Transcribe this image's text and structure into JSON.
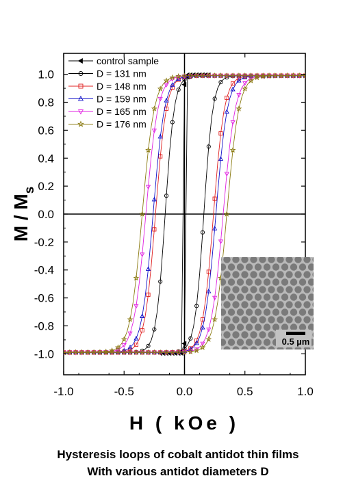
{
  "chart_data": {
    "type": "line",
    "xlabel": "H ( kOe )",
    "ylabel_main": "M / M",
    "ylabel_sub": "s",
    "xlim": [
      -1.0,
      1.0
    ],
    "ylim": [
      -1.15,
      1.15
    ],
    "xticks": [
      "-1.0",
      "-0.5",
      "0.0",
      "0.5",
      "1.0"
    ],
    "xtick_values": [
      -1.0,
      -0.5,
      0.0,
      0.5,
      1.0
    ],
    "yticks": [
      "-1.0",
      "-0.8",
      "-0.6",
      "-0.4",
      "-0.2",
      "0.0",
      "0.2",
      "0.4",
      "0.6",
      "0.8",
      "1.0"
    ],
    "ytick_values": [
      -1.0,
      -0.8,
      -0.6,
      -0.4,
      -0.2,
      0.0,
      0.2,
      0.4,
      0.6,
      0.8,
      1.0
    ],
    "zero_lines": true,
    "legend_position": "top-left",
    "series": [
      {
        "name": "control sample",
        "color": "#000000",
        "marker": "triangle-left",
        "coercivity": 0.01,
        "width": 0.006,
        "saturation_field": 0.2
      },
      {
        "name": "D = 131 nm",
        "color": "#000000",
        "marker": "circle",
        "coercivity": 0.16,
        "width": 0.075
      },
      {
        "name": "D = 148 nm",
        "color": "#e02020",
        "marker": "square",
        "coercivity": 0.24,
        "width": 0.09
      },
      {
        "name": "D = 159 nm",
        "color": "#1010c8",
        "marker": "triangle-up",
        "coercivity": 0.26,
        "width": 0.095
      },
      {
        "name": "D = 165 nm",
        "color": "#e020e0",
        "marker": "triangle-down",
        "coercivity": 0.32,
        "width": 0.1
      },
      {
        "name": "D = 176 nm",
        "color": "#8a7a10",
        "marker": "star",
        "coercivity": 0.35,
        "width": 0.1
      }
    ],
    "inset": {
      "scale_bar_label": "0.5 µm"
    }
  },
  "caption": {
    "line1": "Hysteresis loops of cobalt antidot thin films",
    "line2": "With various antidot diameters D"
  }
}
